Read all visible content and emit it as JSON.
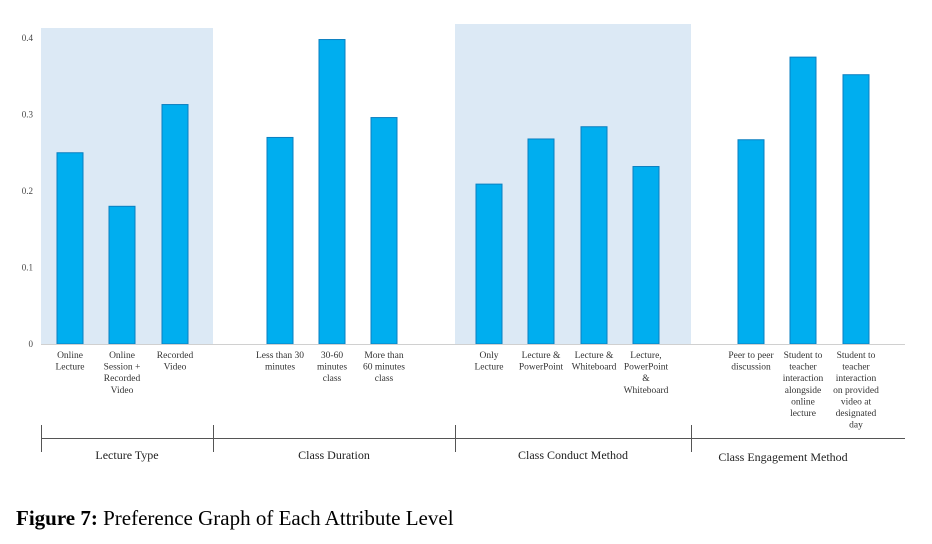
{
  "chart_data": {
    "type": "bar",
    "ylim": [
      0,
      0.4
    ],
    "yticks": [
      "0",
      "0.1",
      "0.2",
      "0.3",
      "0.4"
    ],
    "bar_color": "#00AEEF",
    "bar_edge_color": "#0a7fc0",
    "shade_color": "#dce9f5",
    "groups": [
      {
        "name": "Lecture Type",
        "shaded": true,
        "categories": [
          {
            "label": [
              "Online",
              "Lecture"
            ],
            "value": 0.25
          },
          {
            "label": [
              "Online",
              "Session +",
              "Recorded",
              "Video"
            ],
            "value": 0.18
          },
          {
            "label": [
              "Recorded",
              "Video"
            ],
            "value": 0.313
          }
        ]
      },
      {
        "name": "Class Duration",
        "shaded": false,
        "categories": [
          {
            "label": [
              "Less than 30",
              "minutes"
            ],
            "value": 0.27
          },
          {
            "label": [
              "30-60",
              "minutes",
              "class"
            ],
            "value": 0.398
          },
          {
            "label": [
              "More than",
              "60 minutes",
              "class"
            ],
            "value": 0.296
          }
        ]
      },
      {
        "name": "Class Conduct Method",
        "shaded": true,
        "categories": [
          {
            "label": [
              "Only",
              "Lecture"
            ],
            "value": 0.209
          },
          {
            "label": [
              "Lecture &",
              "PowerPoint"
            ],
            "value": 0.268
          },
          {
            "label": [
              "Lecture &",
              "Whiteboard"
            ],
            "value": 0.284
          },
          {
            "label": [
              "Lecture,",
              "PowerPoint",
              "&",
              "Whiteboard"
            ],
            "value": 0.232
          }
        ]
      },
      {
        "name": "Class Engagement Method",
        "shaded": false,
        "categories": [
          {
            "label": [
              "Peer to peer",
              "discussion"
            ],
            "value": 0.267
          },
          {
            "label": [
              "Student to",
              "teacher",
              "interaction",
              "alongside",
              "online",
              "lecture"
            ],
            "value": 0.375
          },
          {
            "label": [
              "Student to",
              "teacher",
              "interaction",
              "on provided",
              "video at",
              "designated",
              "day"
            ],
            "value": 0.352
          }
        ]
      }
    ]
  },
  "caption": {
    "label": "Figure 7:",
    "text": " Preference Graph of Each Attribute Level"
  }
}
